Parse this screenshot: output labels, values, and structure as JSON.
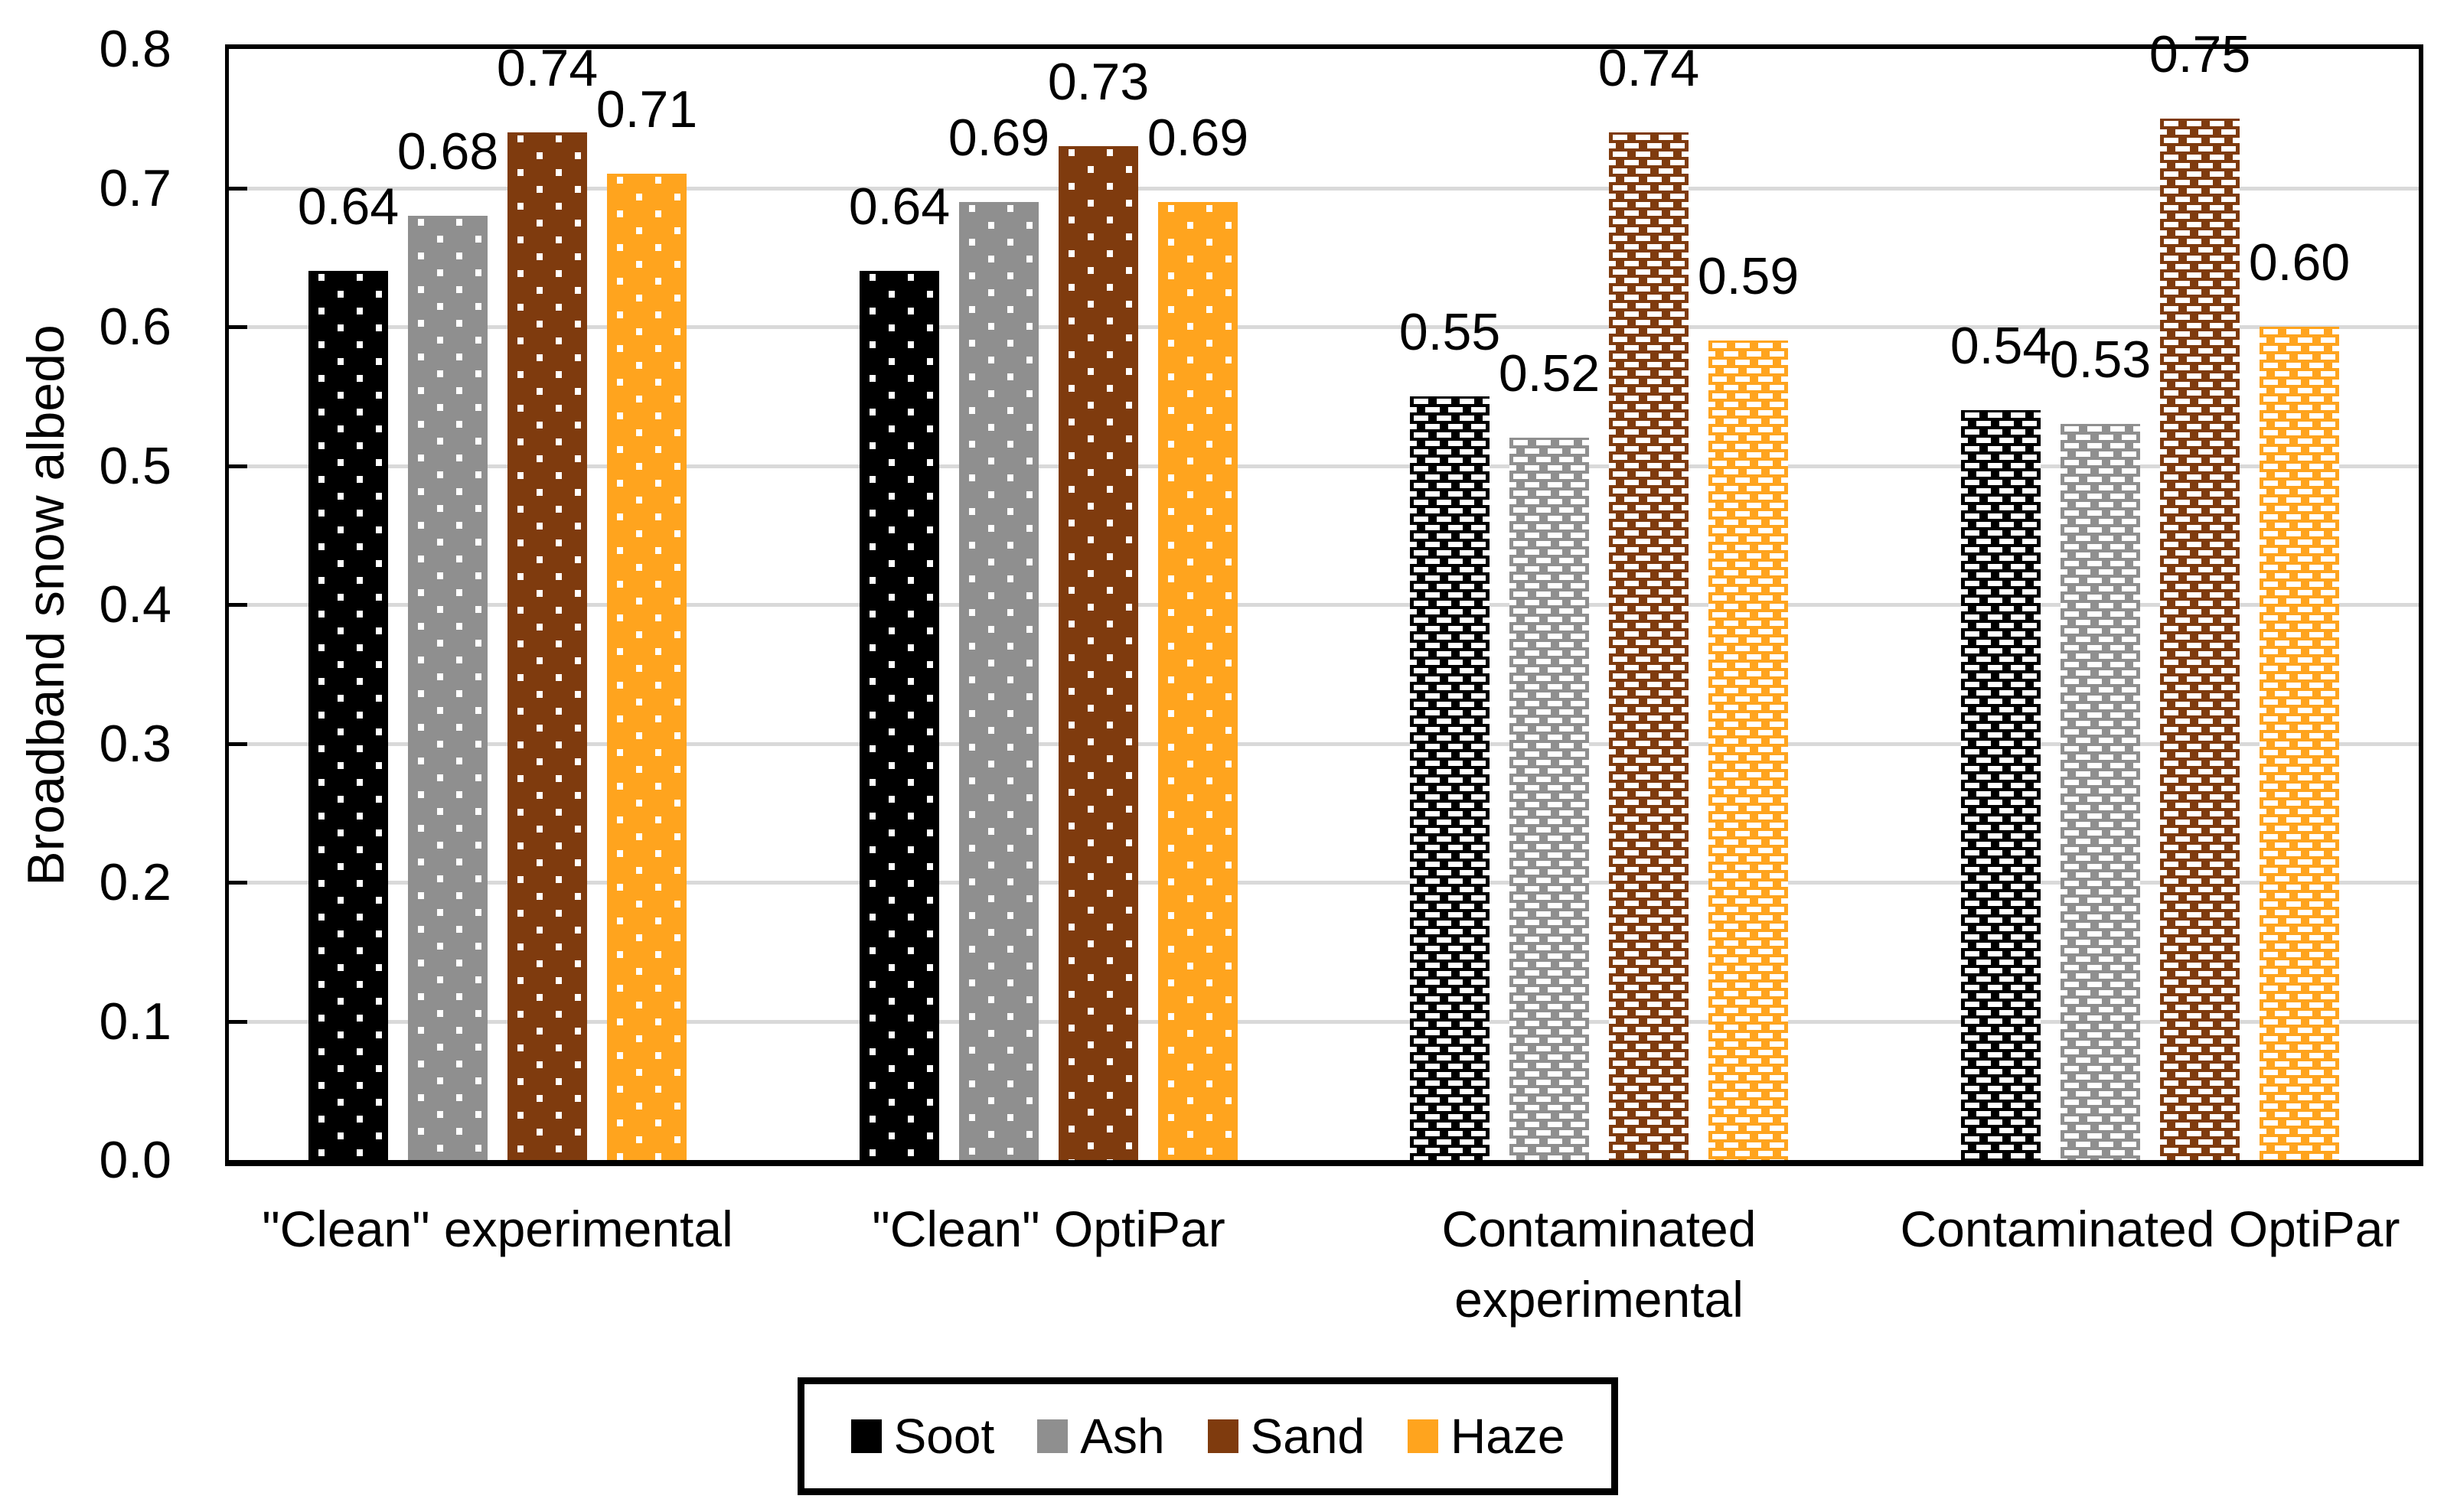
{
  "chart_data": {
    "type": "bar",
    "title": "",
    "ylabel": "Broadband snow albedo",
    "xlabel": "",
    "ylim": [
      0.0,
      0.8
    ],
    "ytick_labels": [
      "0.0",
      "0.1",
      "0.2",
      "0.3",
      "0.4",
      "0.5",
      "0.6",
      "0.7",
      "0.8"
    ],
    "grid": true,
    "gridline_color": "#D9D9D9",
    "pattern_foreground": "#FFFFFF",
    "categories": [
      "\"Clean\" experimental",
      "\"Clean\" OptiPar",
      "Contaminated experimental",
      "Contaminated OptiPar"
    ],
    "category_label_lines": [
      [
        "\"Clean\" experimental"
      ],
      [
        "\"Clean\" OptiPar"
      ],
      [
        "Contaminated",
        "experimental"
      ],
      [
        "Contaminated OptiPar"
      ]
    ],
    "patterns_by_category": [
      "dots",
      "dots",
      "dashes",
      "dashes"
    ],
    "series": [
      {
        "name": "Soot",
        "color": "#000000",
        "values": [
          0.64,
          0.64,
          0.55,
          0.54
        ],
        "data_labels": [
          "0.64",
          "0.64",
          "0.55",
          "0.54"
        ]
      },
      {
        "name": "Ash",
        "color": "#8F8F8F",
        "values": [
          0.68,
          0.69,
          0.52,
          0.53
        ],
        "data_labels": [
          "0.68",
          "0.69",
          "0.52",
          "0.53"
        ]
      },
      {
        "name": "Sand",
        "color": "#7F3B0E",
        "values": [
          0.74,
          0.73,
          0.74,
          0.75
        ],
        "data_labels": [
          "0.74",
          "0.73",
          "0.74",
          "0.75"
        ]
      },
      {
        "name": "Haze",
        "color": "#FFA41E",
        "values": [
          0.71,
          0.69,
          0.59,
          0.6
        ],
        "data_labels": [
          "0.71",
          "0.69",
          "0.59",
          "0.60"
        ]
      }
    ],
    "legend_position": "bottom",
    "legend_entries": [
      "Soot",
      "Ash",
      "Sand",
      "Haze"
    ]
  }
}
